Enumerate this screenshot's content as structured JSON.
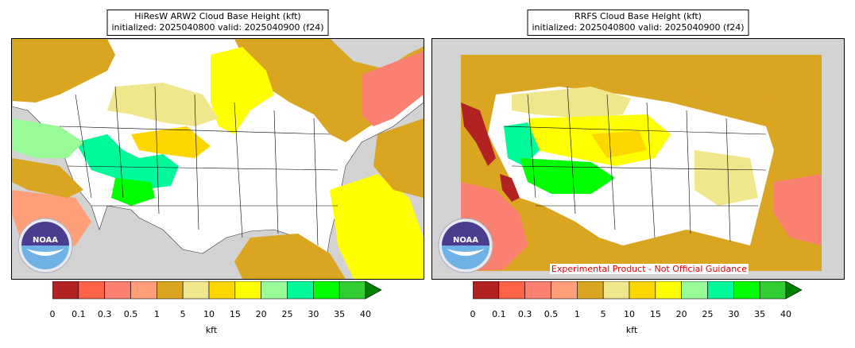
{
  "panels": [
    {
      "id": "left",
      "title_line1": "HiResW ARW2 Cloud Base Height (kft)",
      "title_line2": "initialized: 2025040800 valid: 2025040900 (f24)",
      "logo_text": "NOAA",
      "disclaimer": ""
    },
    {
      "id": "right",
      "title_line1": "RRFS Cloud Base Height (kft)",
      "title_line2": "initialized: 2025040800 valid: 2025040900 (f24)",
      "logo_text": "NOAA",
      "disclaimer": "Experimental Product - Not Official Guidance"
    }
  ],
  "colorbar": {
    "unit": "kft",
    "ticks": [
      "0",
      "0.1",
      "0.3",
      "0.5",
      "1",
      "5",
      "10",
      "15",
      "20",
      "25",
      "30",
      "35",
      "40"
    ],
    "colors": [
      "#b22222",
      "#ff6347",
      "#fa8072",
      "#ffa07a",
      "#daa520",
      "#f0e68c",
      "#ffd700",
      "#ffff00",
      "#98fb98",
      "#00fa9a",
      "#00ff00",
      "#32cd32"
    ],
    "extend_color": "#008000",
    "extend": "max"
  },
  "map_colors": {
    "ocean": "#d3d3d3",
    "land": "#ffffff",
    "border": "#000000"
  }
}
